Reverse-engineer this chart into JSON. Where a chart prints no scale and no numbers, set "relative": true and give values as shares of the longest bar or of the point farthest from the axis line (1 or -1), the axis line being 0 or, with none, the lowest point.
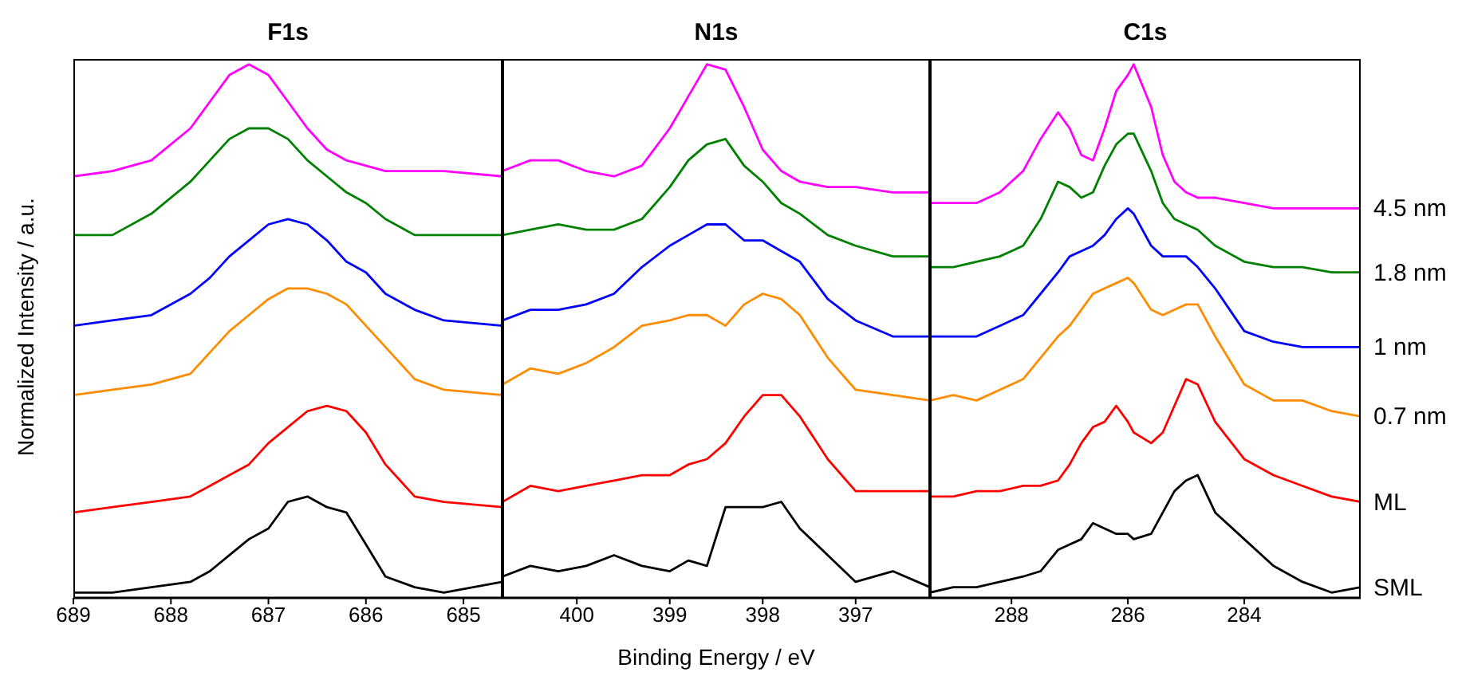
{
  "chart_data": [
    {
      "type": "line",
      "title": "F1s",
      "ylabel": "Normalized Intensity / a.u.",
      "relative": true,
      "xlim": [
        689,
        684.6
      ],
      "xticks": [
        689,
        688,
        687,
        686,
        685
      ],
      "x": [
        689,
        688.6,
        688.2,
        687.8,
        687.6,
        687.4,
        687.2,
        687.0,
        686.8,
        686.6,
        686.4,
        686.2,
        686.0,
        685.8,
        685.5,
        685.2,
        684.6
      ],
      "series": [
        {
          "color": "#ff00ff",
          "values": [
            0.79,
            0.8,
            0.82,
            0.88,
            0.93,
            0.98,
            1.0,
            0.98,
            0.93,
            0.88,
            0.84,
            0.82,
            0.81,
            0.8,
            0.8,
            0.8,
            0.79
          ]
        },
        {
          "color": "#008000",
          "values": [
            0.68,
            0.68,
            0.72,
            0.78,
            0.82,
            0.86,
            0.88,
            0.88,
            0.86,
            0.82,
            0.79,
            0.76,
            0.74,
            0.71,
            0.68,
            0.68,
            0.68
          ]
        },
        {
          "color": "#0000ff",
          "values": [
            0.51,
            0.52,
            0.53,
            0.57,
            0.6,
            0.64,
            0.67,
            0.7,
            0.71,
            0.7,
            0.67,
            0.63,
            0.61,
            0.57,
            0.54,
            0.52,
            0.51
          ]
        },
        {
          "color": "#ff8c00",
          "values": [
            0.38,
            0.39,
            0.4,
            0.42,
            0.46,
            0.5,
            0.53,
            0.56,
            0.58,
            0.58,
            0.57,
            0.55,
            0.51,
            0.47,
            0.41,
            0.39,
            0.38
          ]
        },
        {
          "color": "#ff0000",
          "values": [
            0.16,
            0.17,
            0.18,
            0.19,
            0.21,
            0.23,
            0.25,
            0.29,
            0.32,
            0.35,
            0.36,
            0.35,
            0.31,
            0.25,
            0.19,
            0.18,
            0.17
          ]
        },
        {
          "color": "#000000",
          "values": [
            0.01,
            0.01,
            0.02,
            0.03,
            0.05,
            0.08,
            0.11,
            0.13,
            0.18,
            0.19,
            0.17,
            0.16,
            0.1,
            0.04,
            0.02,
            0.01,
            0.03
          ]
        }
      ]
    },
    {
      "type": "line",
      "title": "N1s",
      "xlabel": "Binding Energy / eV",
      "relative": true,
      "xlim": [
        400.8,
        396.2
      ],
      "xticks": [
        400,
        399,
        398,
        397
      ],
      "x": [
        400.8,
        400.5,
        400.2,
        399.9,
        399.6,
        399.3,
        399.0,
        398.8,
        398.6,
        398.4,
        398.2,
        398.0,
        397.8,
        397.6,
        397.3,
        397.0,
        396.6,
        396.2
      ],
      "series": [
        {
          "color": "#ff00ff",
          "values": [
            0.8,
            0.82,
            0.82,
            0.8,
            0.79,
            0.81,
            0.88,
            0.94,
            1.0,
            0.99,
            0.92,
            0.84,
            0.8,
            0.78,
            0.77,
            0.77,
            0.76,
            0.76
          ]
        },
        {
          "color": "#008000",
          "values": [
            0.68,
            0.69,
            0.7,
            0.69,
            0.69,
            0.71,
            0.77,
            0.82,
            0.85,
            0.86,
            0.81,
            0.78,
            0.74,
            0.72,
            0.68,
            0.66,
            0.64,
            0.64
          ]
        },
        {
          "color": "#0000ff",
          "values": [
            0.52,
            0.54,
            0.54,
            0.55,
            0.57,
            0.62,
            0.66,
            0.68,
            0.7,
            0.7,
            0.67,
            0.67,
            0.65,
            0.63,
            0.56,
            0.52,
            0.49,
            0.49
          ]
        },
        {
          "color": "#ff8c00",
          "values": [
            0.4,
            0.43,
            0.42,
            0.44,
            0.47,
            0.51,
            0.52,
            0.53,
            0.53,
            0.51,
            0.55,
            0.57,
            0.56,
            0.53,
            0.45,
            0.39,
            0.38,
            0.37
          ]
        },
        {
          "color": "#ff0000",
          "values": [
            0.18,
            0.21,
            0.2,
            0.21,
            0.22,
            0.23,
            0.23,
            0.25,
            0.26,
            0.29,
            0.34,
            0.38,
            0.38,
            0.34,
            0.26,
            0.2,
            0.2,
            0.2
          ]
        },
        {
          "color": "#000000",
          "values": [
            0.04,
            0.06,
            0.05,
            0.06,
            0.08,
            0.06,
            0.05,
            0.07,
            0.06,
            0.17,
            0.17,
            0.17,
            0.18,
            0.13,
            0.08,
            0.03,
            0.05,
            0.02
          ]
        }
      ]
    },
    {
      "type": "line",
      "title": "C1s",
      "relative": true,
      "xlim": [
        289.4,
        282.0
      ],
      "xticks": [
        288,
        286,
        284
      ],
      "x": [
        289.4,
        289.0,
        288.6,
        288.2,
        287.8,
        287.5,
        287.2,
        287.0,
        286.8,
        286.6,
        286.4,
        286.2,
        286.0,
        285.9,
        285.6,
        285.4,
        285.2,
        285.0,
        284.8,
        284.5,
        284.0,
        283.5,
        283.0,
        282.5,
        282.0
      ],
      "series": [
        {
          "name": "4.5 nm",
          "color": "#ff00ff",
          "values": [
            0.74,
            0.74,
            0.74,
            0.76,
            0.8,
            0.86,
            0.91,
            0.88,
            0.83,
            0.82,
            0.88,
            0.95,
            0.98,
            1.0,
            0.92,
            0.83,
            0.78,
            0.76,
            0.75,
            0.75,
            0.74,
            0.73,
            0.73,
            0.73,
            0.73
          ]
        },
        {
          "name": "1.8 nm",
          "color": "#008000",
          "values": [
            0.62,
            0.62,
            0.63,
            0.64,
            0.66,
            0.71,
            0.78,
            0.77,
            0.75,
            0.76,
            0.81,
            0.85,
            0.87,
            0.87,
            0.8,
            0.74,
            0.71,
            0.7,
            0.69,
            0.66,
            0.63,
            0.62,
            0.62,
            0.61,
            0.61
          ]
        },
        {
          "name": "1 nm",
          "color": "#0000ff",
          "values": [
            0.49,
            0.49,
            0.49,
            0.51,
            0.53,
            0.57,
            0.61,
            0.64,
            0.65,
            0.66,
            0.68,
            0.71,
            0.73,
            0.72,
            0.66,
            0.64,
            0.64,
            0.64,
            0.62,
            0.58,
            0.5,
            0.48,
            0.47,
            0.47,
            0.47
          ]
        },
        {
          "name": "0.7 nm",
          "color": "#ff8c00",
          "values": [
            0.37,
            0.38,
            0.37,
            0.39,
            0.41,
            0.45,
            0.49,
            0.51,
            0.54,
            0.57,
            0.58,
            0.59,
            0.6,
            0.59,
            0.54,
            0.53,
            0.54,
            0.55,
            0.55,
            0.49,
            0.4,
            0.37,
            0.37,
            0.35,
            0.34
          ]
        },
        {
          "name": "ML",
          "color": "#ff0000",
          "values": [
            0.19,
            0.19,
            0.2,
            0.2,
            0.21,
            0.21,
            0.22,
            0.25,
            0.29,
            0.32,
            0.33,
            0.36,
            0.33,
            0.31,
            0.29,
            0.31,
            0.36,
            0.41,
            0.4,
            0.33,
            0.26,
            0.23,
            0.21,
            0.19,
            0.18
          ]
        },
        {
          "name": "SML",
          "color": "#000000",
          "values": [
            0.01,
            0.02,
            0.02,
            0.03,
            0.04,
            0.05,
            0.09,
            0.1,
            0.11,
            0.14,
            0.13,
            0.12,
            0.12,
            0.11,
            0.12,
            0.16,
            0.2,
            0.22,
            0.23,
            0.16,
            0.11,
            0.06,
            0.03,
            0.01,
            0.02
          ]
        }
      ]
    }
  ]
}
